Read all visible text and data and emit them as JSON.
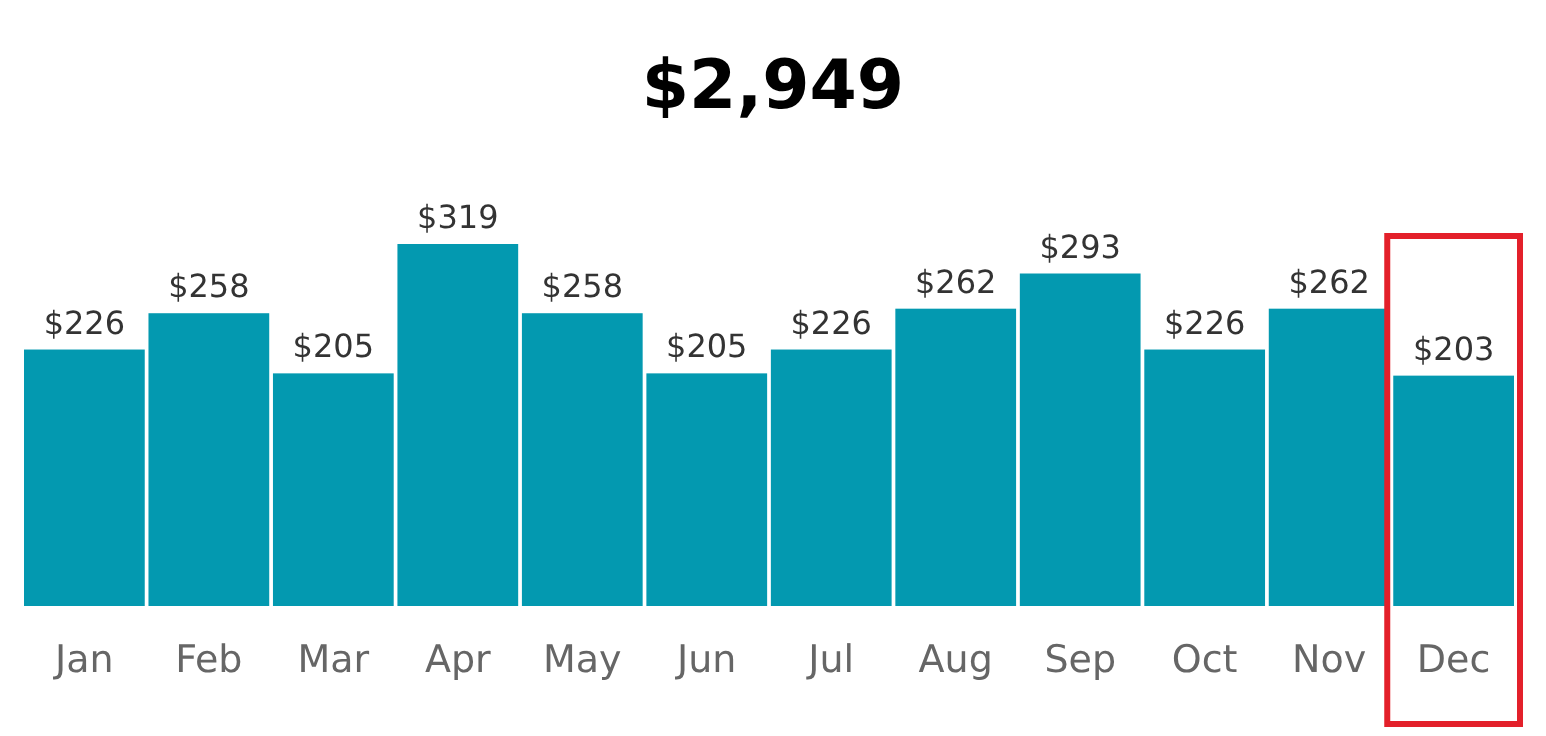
{
  "chart_data": {
    "type": "bar",
    "title": "$2,949",
    "categories": [
      "Jan",
      "Feb",
      "Mar",
      "Apr",
      "May",
      "Jun",
      "Jul",
      "Aug",
      "Sep",
      "Oct",
      "Nov",
      "Dec"
    ],
    "values": [
      226,
      258,
      205,
      319,
      258,
      205,
      226,
      262,
      293,
      226,
      262,
      203
    ],
    "value_labels": [
      "$226",
      "$258",
      "$205",
      "$319",
      "$258",
      "$205",
      "$226",
      "$262",
      "$293",
      "$226",
      "$262",
      "$203"
    ],
    "color": "#0399b0"
  }
}
